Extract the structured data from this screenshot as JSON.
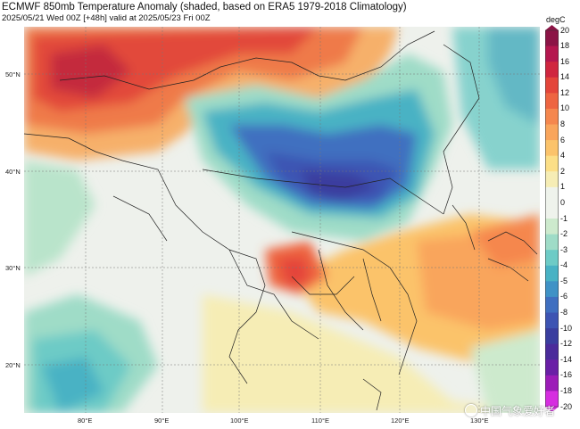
{
  "header": {
    "title": "ECMWF 850mb Temperature Anomaly (shaded, based on ERA5 1979-2018 Climatology)",
    "subtitle": "2025/05/21 Wed 00Z [+48h] valid at 2025/05/23 Fri 00Z"
  },
  "axes": {
    "lat_labels": [
      "50°N",
      "40°N",
      "30°N",
      "20°N"
    ],
    "lon_labels": [
      "80°E",
      "90°E",
      "100°E",
      "110°E",
      "120°E",
      "130°E"
    ]
  },
  "colorbar": {
    "unit": "degC",
    "ticks": [
      "20",
      "18",
      "16",
      "14",
      "12",
      "10",
      "8",
      "6",
      "4",
      "2",
      "1",
      "0",
      "-1",
      "-2",
      "-3",
      "-4",
      "-5",
      "-6",
      "-8",
      "-10",
      "-12",
      "-14",
      "-16",
      "-18",
      "-20"
    ],
    "colors": [
      "#8c1446",
      "#b5174f",
      "#d0263f",
      "#e4453a",
      "#ee6541",
      "#f5874e",
      "#f9a55c",
      "#fbc36b",
      "#fcdf87",
      "#f6edb5",
      "#eff3ec",
      "#eff3ec",
      "#cdeacd",
      "#9fdcc7",
      "#6dcbc6",
      "#48b2c4",
      "#3f92c6",
      "#3f6fc0",
      "#3d54b3",
      "#3a3e9f",
      "#4b2b9b",
      "#6a1fa6",
      "#9c1cb8",
      "#d62ee0"
    ]
  },
  "watermark": {
    "text": "中国气象爱好者"
  }
}
